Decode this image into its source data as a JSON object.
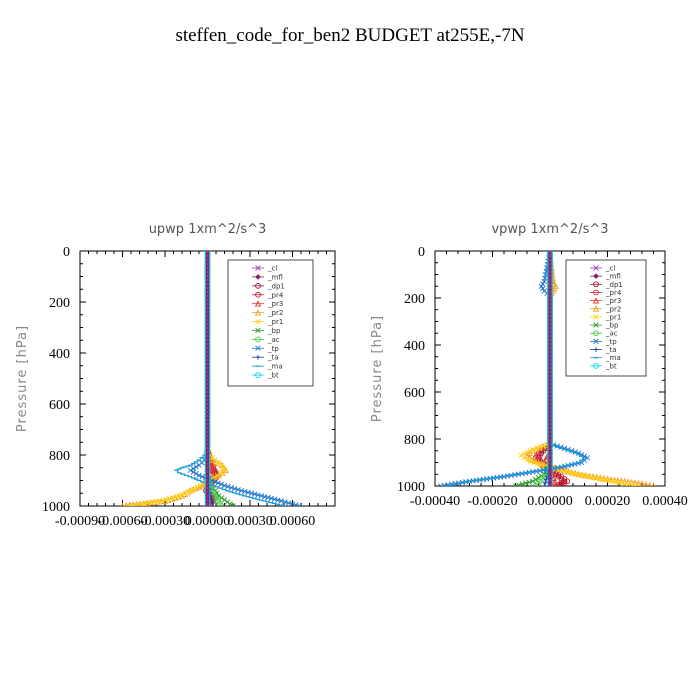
{
  "figure_title": "steffen_code_for_ben2  BUDGET at255E,-7N",
  "chart_data": [
    {
      "type": "line",
      "title": "upwp   1xm^2/s^3",
      "ylabel": "Pressure  [hPa]",
      "xlim": [
        -0.0009,
        0.0009
      ],
      "ylim": [
        1000,
        0
      ],
      "x_ticks": [
        "-0.00090",
        "-0.00060",
        "-0.00030",
        "0.00000",
        "0.00030",
        "0.00060"
      ],
      "x_tick_values": [
        -0.0009,
        -0.0006,
        -0.0003,
        0.0,
        0.0003,
        0.0006
      ],
      "y_ticks": [
        "0",
        "200",
        "400",
        "600",
        "800",
        "1000"
      ],
      "y_tick_values": [
        0,
        200,
        400,
        600,
        800,
        1000
      ],
      "legend_position": "top-right",
      "series": [
        {
          "name": "_cl",
          "color": "#9a3fb8",
          "marker": "x",
          "p": [
            0,
            700,
            800,
            900,
            1000
          ],
          "x": [
            0,
            0,
            0,
            0,
            0
          ]
        },
        {
          "name": "_mfl",
          "color": "#8a1e6e",
          "marker": "diamond",
          "p": [
            0,
            700,
            800,
            900,
            1000
          ],
          "x": [
            0,
            0,
            0,
            0,
            0
          ]
        },
        {
          "name": "_dp1",
          "color": "#a0122e",
          "marker": "circle",
          "p": [
            0,
            780,
            830,
            860,
            880,
            900,
            920,
            940,
            960,
            980,
            1000
          ],
          "x": [
            0,
            0,
            2e-05,
            4e-05,
            6e-05,
            4e-05,
            1e-05,
            -1e-05,
            2e-05,
            3e-05,
            1e-05
          ]
        },
        {
          "name": "_pr4",
          "color": "#cc1a33",
          "marker": "circle",
          "p": [
            0,
            780,
            830,
            860,
            880,
            900,
            920,
            940,
            960,
            980,
            1000
          ],
          "x": [
            0,
            0,
            3e-05,
            5e-05,
            7e-05,
            5e-05,
            1e-05,
            -1e-05,
            3e-05,
            4e-05,
            1e-05
          ]
        },
        {
          "name": "_pr3",
          "color": "#ee3322",
          "marker": "triangle",
          "p": [
            0,
            800,
            860,
            900,
            940,
            1000
          ],
          "x": [
            0,
            0,
            3e-05,
            0,
            1e-05,
            0
          ]
        },
        {
          "name": "_pr2",
          "color": "#f0a020",
          "marker": "triangle",
          "p": [
            0,
            800,
            820,
            840,
            860,
            880,
            900,
            920,
            940,
            960,
            980,
            1000
          ],
          "x": [
            0,
            0,
            4e-05,
            0.0001,
            0.00013,
            8e-05,
            2e-05,
            -4e-05,
            -0.00012,
            -0.00018,
            -0.0003,
            -0.0006
          ]
        },
        {
          "name": "_pr1",
          "color": "#ffd21a",
          "marker": "x",
          "p": [
            0,
            780,
            800,
            820,
            840,
            860,
            880,
            900,
            920,
            940,
            960,
            980,
            1000
          ],
          "x": [
            0,
            0,
            2e-05,
            5e-05,
            0.0001,
            0.00012,
            7e-05,
            1e-05,
            -5e-05,
            -0.00012,
            -0.0002,
            -0.00032,
            -0.00055
          ]
        },
        {
          "name": "_bp",
          "color": "#2a9a2a",
          "marker": "x",
          "p": [
            0,
            880,
            920,
            960,
            1000
          ],
          "x": [
            0,
            0,
            3e-05,
            8e-05,
            0.00018
          ]
        },
        {
          "name": "_ac",
          "color": "#44cc44",
          "marker": "circle",
          "p": [
            0,
            880,
            920,
            960,
            1000
          ],
          "x": [
            0,
            0,
            2e-05,
            5e-05,
            0.0001
          ]
        },
        {
          "name": "_tp",
          "color": "#2277cc",
          "marker": "x",
          "p": [
            0,
            800,
            820,
            840,
            860,
            880,
            900,
            920,
            940,
            960,
            980,
            1000
          ],
          "x": [
            0,
            0,
            -2e-05,
            -6e-05,
            -0.00012,
            -6e-05,
            3e-05,
            0.00012,
            0.00024,
            0.00038,
            0.00052,
            0.00065
          ]
        },
        {
          "name": "_ta",
          "color": "#1a3aaa",
          "marker": "plus",
          "p": [
            0,
            880,
            920,
            960,
            1000
          ],
          "x": [
            0,
            0,
            1e-05,
            2e-05,
            4e-05
          ]
        },
        {
          "name": "_ma",
          "color": "#1a9ad6",
          "marker": "dash",
          "p": [
            0,
            780,
            800,
            820,
            840,
            850,
            860,
            870,
            880,
            890,
            900,
            920,
            940,
            960,
            980,
            1000
          ],
          "x": [
            0,
            0,
            -2e-05,
            -6e-05,
            -0.00012,
            -0.00018,
            -0.00022,
            -0.0002,
            -0.00015,
            -0.0001,
            -6e-05,
            4e-05,
            0.00014,
            0.00026,
            0.0004,
            0.00054
          ]
        },
        {
          "name": "_bt",
          "color": "#00d0f0",
          "marker": "circle",
          "p": [
            0,
            1000
          ],
          "x": [
            0,
            0
          ]
        }
      ]
    },
    {
      "type": "line",
      "title": "vpwp   1xm^2/s^3",
      "ylabel": "Pressure  [hPa]",
      "xlim": [
        -0.0004,
        0.0004
      ],
      "ylim": [
        1000,
        0
      ],
      "x_ticks": [
        "-0.00040",
        "-0.00020",
        "0.00000",
        "0.00020",
        "0.00040"
      ],
      "x_tick_values": [
        -0.0004,
        -0.0002,
        0.0,
        0.0002,
        0.0004
      ],
      "y_ticks": [
        "0",
        "200",
        "400",
        "600",
        "800",
        "1000"
      ],
      "y_tick_values": [
        0,
        200,
        400,
        600,
        800,
        1000
      ],
      "legend_position": "top-right",
      "series": [
        {
          "name": "_cl",
          "color": "#9a3fb8",
          "marker": "x",
          "p": [
            0,
            800,
            900,
            1000
          ],
          "x": [
            0,
            0,
            0,
            0
          ]
        },
        {
          "name": "_mfl",
          "color": "#8a1e6e",
          "marker": "diamond",
          "p": [
            0,
            800,
            900,
            1000
          ],
          "x": [
            0,
            0,
            0,
            0
          ]
        },
        {
          "name": "_dp1",
          "color": "#a0122e",
          "marker": "circle",
          "p": [
            0,
            820,
            860,
            880,
            900,
            920,
            940,
            960,
            980,
            1000
          ],
          "x": [
            0,
            0,
            -3e-05,
            -4e-05,
            -3e-05,
            -1e-05,
            1e-05,
            3e-05,
            5e-05,
            2e-05
          ]
        },
        {
          "name": "_pr4",
          "color": "#cc1a33",
          "marker": "circle",
          "p": [
            0,
            820,
            860,
            880,
            900,
            920,
            940,
            960,
            980,
            1000
          ],
          "x": [
            0,
            0,
            -4e-05,
            -5e-05,
            -4e-05,
            -2e-05,
            1e-05,
            4e-05,
            6e-05,
            3e-05
          ]
        },
        {
          "name": "_pr3",
          "color": "#ee3322",
          "marker": "triangle",
          "p": [
            0,
            850,
            900,
            950,
            1000
          ],
          "x": [
            0,
            0,
            -2e-05,
            1e-05,
            2e-05
          ]
        },
        {
          "name": "_pr2",
          "color": "#f0a020",
          "marker": "triangle",
          "p": [
            0,
            130,
            150,
            170,
            190,
            820,
            850,
            870,
            890,
            910,
            930,
            950,
            970,
            990,
            1000
          ],
          "x": [
            0,
            1e-05,
            2e-05,
            1e-05,
            0,
            0,
            -6e-05,
            -8e-05,
            -6e-05,
            -2e-05,
            4e-05,
            0.0001,
            0.0002,
            0.00032,
            0.00036
          ]
        },
        {
          "name": "_pr1",
          "color": "#ffd21a",
          "marker": "x",
          "p": [
            0,
            820,
            850,
            870,
            890,
            910,
            930,
            950,
            970,
            990,
            1000
          ],
          "x": [
            0,
            0,
            -7e-05,
            -0.0001,
            -8e-05,
            -3e-05,
            3e-05,
            9e-05,
            0.00017,
            0.00026,
            0.0003
          ]
        },
        {
          "name": "_bp",
          "color": "#2a9a2a",
          "marker": "x",
          "p": [
            0,
            900,
            950,
            980,
            1000
          ],
          "x": [
            0,
            0,
            -2e-05,
            -6e-05,
            -0.00012
          ]
        },
        {
          "name": "_ac",
          "color": "#44cc44",
          "marker": "circle",
          "p": [
            0,
            920,
            960,
            1000
          ],
          "x": [
            0,
            0,
            -2e-05,
            -5e-05
          ]
        },
        {
          "name": "_tp",
          "color": "#2277cc",
          "marker": "x",
          "p": [
            0,
            130,
            150,
            170,
            190,
            820,
            840,
            860,
            880,
            900,
            920,
            940,
            960,
            980,
            1000
          ],
          "x": [
            0,
            -2e-05,
            -3e-05,
            -2e-05,
            0,
            0,
            5e-05,
            0.0001,
            0.00013,
            0.00011,
            4e-05,
            -6e-05,
            -0.00016,
            -0.00028,
            -0.00038
          ]
        },
        {
          "name": "_ta",
          "color": "#1a3aaa",
          "marker": "plus",
          "p": [
            0,
            920,
            960,
            1000
          ],
          "x": [
            0,
            0,
            -1e-05,
            -2e-05
          ]
        },
        {
          "name": "_ma",
          "color": "#1a9ad6",
          "marker": "dash",
          "p": [
            0,
            820,
            840,
            860,
            880,
            900,
            920,
            940,
            960,
            980,
            1000
          ],
          "x": [
            0,
            0,
            4e-05,
            9e-05,
            0.00012,
            0.0001,
            3e-05,
            -7e-05,
            -0.00017,
            -0.00028,
            -0.00036
          ]
        },
        {
          "name": "_bt",
          "color": "#00d0f0",
          "marker": "circle",
          "p": [
            0,
            1000
          ],
          "x": [
            0,
            0
          ]
        }
      ]
    }
  ]
}
